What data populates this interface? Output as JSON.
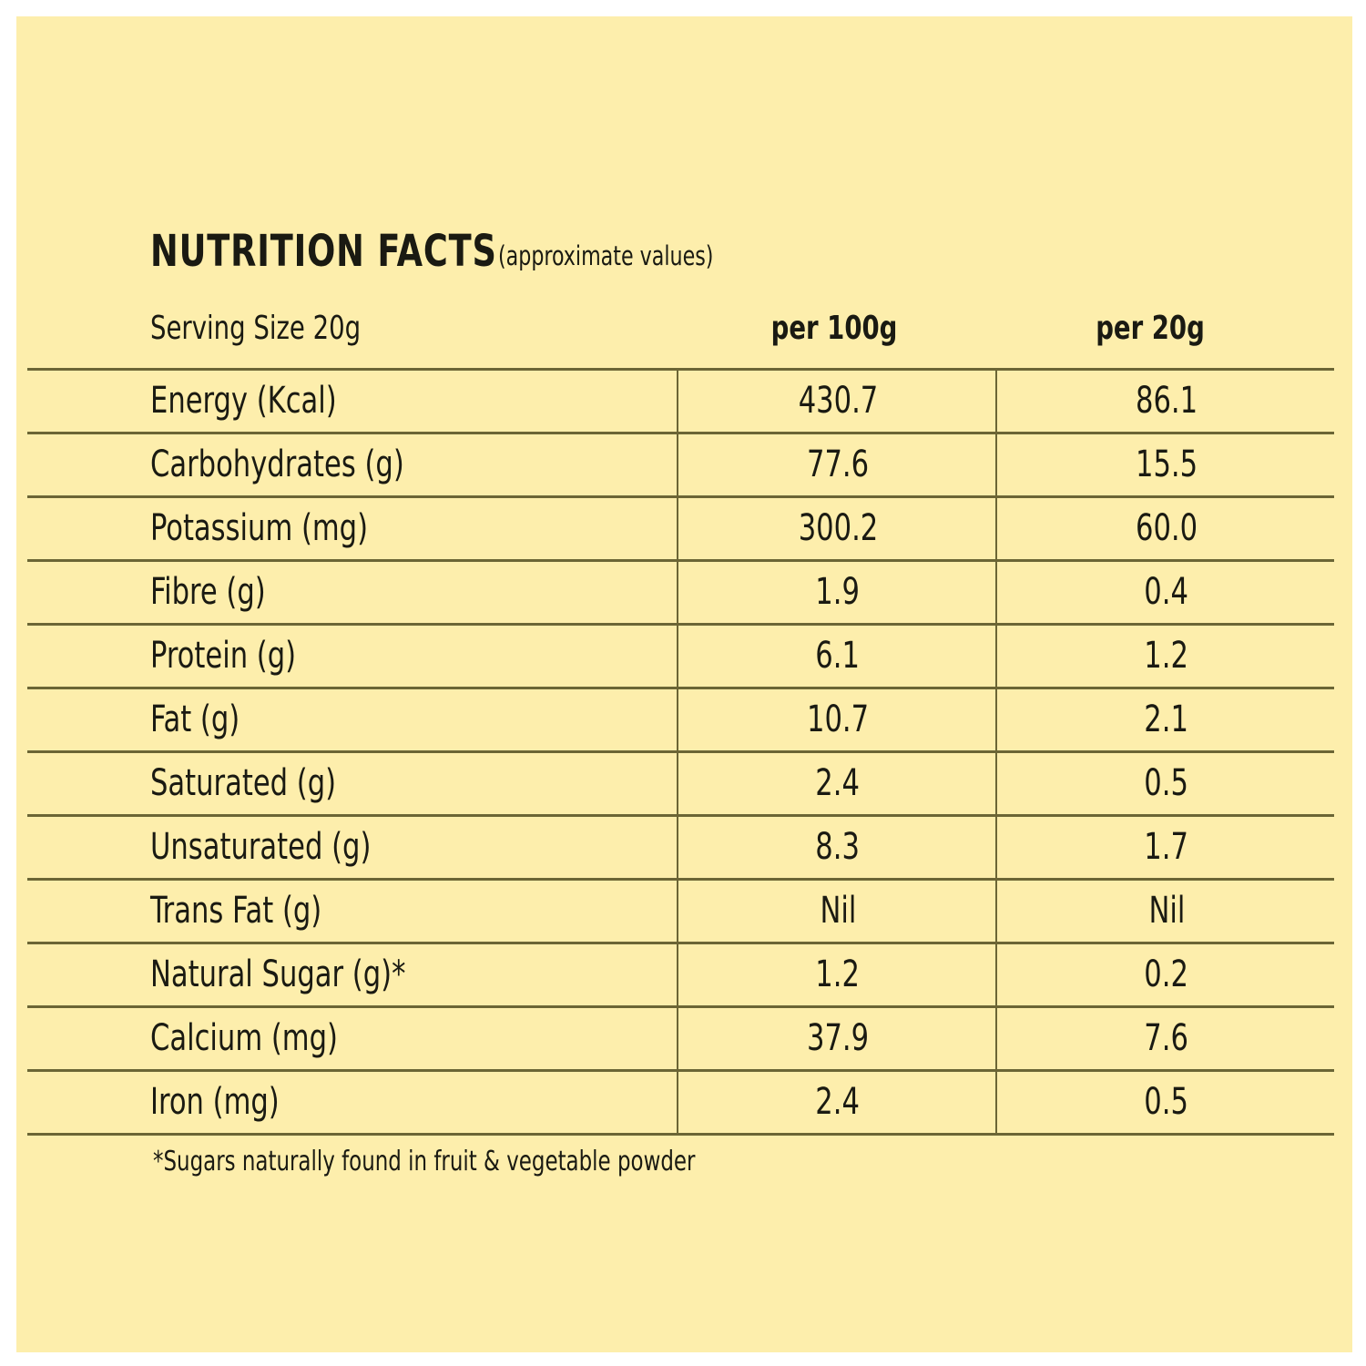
{
  "title": "NUTRITION FACTS",
  "subtitle": "(approximate values)",
  "header": {
    "serving": "Serving Size 20g",
    "col1": "per 100g",
    "col2": "per 20g"
  },
  "rows": [
    {
      "name": "Energy (Kcal)",
      "per100": "430.7",
      "per20": "86.1"
    },
    {
      "name": "Carbohydrates (g)",
      "per100": "77.6",
      "per20": "15.5"
    },
    {
      "name": "Potassium (mg)",
      "per100": "300.2",
      "per20": "60.0"
    },
    {
      "name": "Fibre (g)",
      "per100": "1.9",
      "per20": "0.4"
    },
    {
      "name": "Protein (g)",
      "per100": "6.1",
      "per20": "1.2"
    },
    {
      "name": "Fat (g)",
      "per100": "10.7",
      "per20": "2.1"
    },
    {
      "name": "Saturated (g)",
      "per100": "2.4",
      "per20": "0.5"
    },
    {
      "name": "Unsaturated (g)",
      "per100": "8.3",
      "per20": "1.7"
    },
    {
      "name": "Trans Fat (g)",
      "per100": "Nil",
      "per20": "Nil"
    },
    {
      "name": "Natural Sugar (g)*",
      "per100": "1.2",
      "per20": "0.2"
    },
    {
      "name": "Calcium (mg)",
      "per100": "37.9",
      "per20": "7.6"
    },
    {
      "name": "Iron (mg)",
      "per100": "2.4",
      "per20": "0.5"
    }
  ],
  "footnote": "*Sugars naturally found in fruit & vegetable powder",
  "colors": {
    "background": "#fdeeac",
    "rule": "#6b6535",
    "text": "#1a1a12"
  }
}
